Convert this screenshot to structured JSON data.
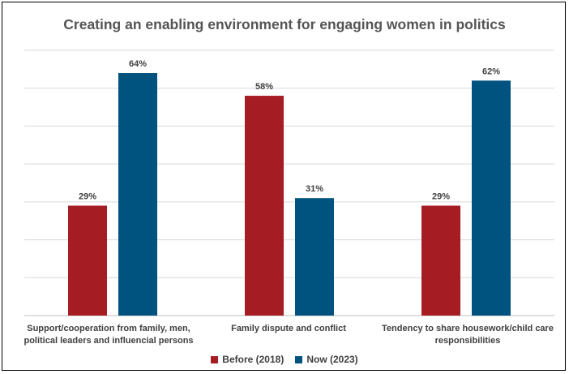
{
  "chart_data": {
    "type": "bar",
    "title": "Creating an enabling environment for engaging women in politics",
    "categories": [
      "Support/cooperation from family, men, political leaders and influencial persons",
      "Family dispute and conflict",
      "Tendency to share housework/child care responsibilities"
    ],
    "series": [
      {
        "name": "Before (2018)",
        "values": [
          29,
          58,
          29
        ],
        "labels": [
          "29%",
          "58%",
          "29%"
        ],
        "color": "#A51C22"
      },
      {
        "name": "Now (2023)",
        "values": [
          64,
          31,
          62
        ],
        "labels": [
          "64%",
          "31%",
          "62%"
        ],
        "color": "#00527F"
      }
    ],
    "ylim": [
      0,
      70
    ],
    "grid": true,
    "legend_position": "bottom"
  }
}
